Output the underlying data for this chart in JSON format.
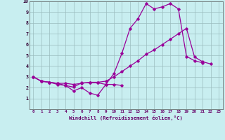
{
  "xlabel": "Windchill (Refroidissement éolien,°C)",
  "xlim": [
    -0.5,
    23.5
  ],
  "ylim": [
    0,
    10
  ],
  "background_color": "#c8eef0",
  "grid_color": "#9bbcbe",
  "line_color": "#990099",
  "line1_y": [
    3.0,
    2.6,
    2.5,
    2.3,
    2.2,
    1.7,
    2.0,
    1.5,
    1.3,
    2.3,
    3.3,
    5.2,
    7.5,
    8.4,
    9.8,
    9.3,
    9.5,
    9.8,
    9.3,
    4.9,
    4.5,
    4.3,
    null,
    null
  ],
  "line2_y": [
    3.0,
    2.6,
    2.5,
    2.4,
    2.2,
    2.05,
    2.45,
    2.45,
    2.45,
    2.3,
    2.3,
    2.2,
    null,
    null,
    null,
    null,
    null,
    null,
    null,
    null,
    null,
    null,
    null,
    null
  ],
  "line3_y": [
    3.0,
    2.6,
    2.5,
    2.4,
    2.4,
    2.3,
    2.4,
    2.5,
    2.5,
    2.6,
    3.0,
    3.5,
    4.0,
    4.5,
    5.1,
    5.5,
    6.0,
    6.5,
    7.0,
    7.5,
    4.85,
    4.4,
    4.2,
    null
  ]
}
